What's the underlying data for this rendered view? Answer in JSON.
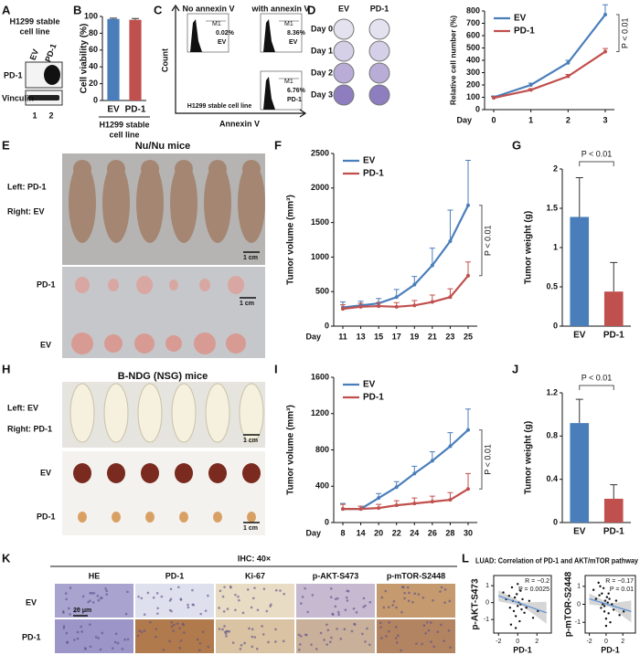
{
  "panel_labels": [
    "A",
    "B",
    "C",
    "D",
    "E",
    "F",
    "G",
    "H",
    "I",
    "J",
    "K",
    "L"
  ],
  "panel_A": {
    "title": [
      "H1299 stable",
      "cell line"
    ],
    "lanes": [
      "EV",
      "PD-1"
    ],
    "rows": [
      "PD-1",
      "Vinculin"
    ],
    "lane_numbers": [
      "1",
      "2"
    ]
  },
  "panel_C": {
    "headers": [
      "No annexin V",
      "with annexin V"
    ],
    "gate": "M1",
    "plots": [
      {
        "percent": "0.02%",
        "label": "EV"
      },
      {
        "percent": "8.36%",
        "label": "EV"
      },
      {
        "percent": "6.76%",
        "label": "PD-1"
      }
    ],
    "y_axis": "Count",
    "x_axis": "Annexin V",
    "caption": "H1299 stable cell line"
  },
  "panel_D": {
    "columns": [
      "EV",
      "PD-1"
    ],
    "rows": [
      "Day 0",
      "Day 1",
      "Day 2",
      "Day 3"
    ]
  },
  "panel_E": {
    "title": "Nu/Nu mice",
    "legend": [
      "Left: PD-1",
      "Right: EV"
    ],
    "scale": "1 cm",
    "rows": [
      "PD-1",
      "EV"
    ]
  },
  "panel_H": {
    "title": "B-NDG (NSG) mice",
    "legend": [
      "Left: EV",
      "Right: PD-1"
    ],
    "scale": "1 cm",
    "rows": [
      "EV",
      "PD-1"
    ]
  },
  "panel_K": {
    "title": "IHC: 40×",
    "columns": [
      "HE",
      "PD-1",
      "Ki-67",
      "p-AKT-S473",
      "p-mTOR-S2448"
    ],
    "rows": [
      "EV",
      "PD-1"
    ],
    "scale": "20 μm"
  },
  "panel_L": {
    "title": "LUAD: Correlation of PD-1 and AKT/mTOR pathway"
  },
  "chart_data": [
    {
      "type": "bar",
      "ylabel": "Cell viability (%)",
      "xlabel": [
        "H1299 stable",
        "cell line"
      ],
      "categories": [
        "EV",
        "PD-1"
      ],
      "values": [
        97,
        96
      ],
      "errors": [
        1,
        1.5
      ],
      "colors": [
        "#4a7ebb",
        "#c0504d"
      ],
      "ylim": [
        0,
        100
      ],
      "yticks": [
        0,
        20,
        40,
        60,
        80,
        100
      ]
    },
    {
      "type": "line",
      "ylabel": "Relative cell number (%)",
      "xlabel": "Day",
      "categories": [
        0,
        1,
        2,
        3
      ],
      "series": [
        {
          "name": "EV",
          "color": "#4a7ebb",
          "values": [
            100,
            200,
            380,
            770
          ],
          "errors": [
            10,
            15,
            20,
            80
          ]
        },
        {
          "name": "PD-1",
          "color": "#c0504d",
          "values": [
            95,
            160,
            270,
            470
          ],
          "errors": [
            10,
            10,
            15,
            25
          ]
        }
      ],
      "ylim": [
        0,
        800
      ],
      "yticks": [
        0,
        100,
        200,
        300,
        400,
        500,
        600,
        700,
        800
      ],
      "annotation": "P < 0.01"
    },
    {
      "type": "line",
      "ylabel": "Tumor volume (mm³)",
      "xlabel": "Day",
      "categories": [
        11,
        13,
        15,
        17,
        19,
        21,
        23,
        25
      ],
      "series": [
        {
          "name": "EV",
          "color": "#4a7ebb",
          "values": [
            270,
            300,
            330,
            420,
            600,
            880,
            1230,
            1750
          ],
          "errors": [
            80,
            60,
            70,
            110,
            120,
            250,
            450,
            650
          ]
        },
        {
          "name": "PD-1",
          "color": "#c0504d",
          "values": [
            250,
            280,
            290,
            280,
            300,
            350,
            420,
            730
          ],
          "errors": [
            60,
            50,
            50,
            60,
            70,
            100,
            120,
            200
          ]
        }
      ],
      "ylim": [
        0,
        2500
      ],
      "yticks": [
        0,
        500,
        1000,
        1500,
        2000,
        2500
      ],
      "annotation": "P < 0.01"
    },
    {
      "type": "bar",
      "ylabel": "Tumor weight (g)",
      "categories": [
        "EV",
        "PD-1"
      ],
      "values": [
        1.39,
        0.44
      ],
      "errors": [
        0.5,
        0.37
      ],
      "colors": [
        "#4a7ebb",
        "#c0504d"
      ],
      "ylim": [
        0,
        2
      ],
      "yticks": [
        0,
        0.5,
        1,
        1.5,
        2
      ],
      "annotation": "P < 0.01"
    },
    {
      "type": "line",
      "ylabel": "Tumor volume (mm³)",
      "xlabel": "Day",
      "categories": [
        8,
        14,
        20,
        22,
        24,
        26,
        28,
        30
      ],
      "series": [
        {
          "name": "EV",
          "color": "#4a7ebb",
          "values": [
            150,
            150,
            270,
            390,
            540,
            680,
            840,
            1020
          ],
          "errors": [
            60,
            30,
            50,
            60,
            80,
            100,
            150,
            230
          ]
        },
        {
          "name": "PD-1",
          "color": "#c0504d",
          "values": [
            150,
            150,
            160,
            190,
            210,
            230,
            250,
            370
          ],
          "errors": [
            50,
            30,
            40,
            50,
            60,
            60,
            80,
            170
          ]
        }
      ],
      "ylim": [
        0,
        1600
      ],
      "yticks": [
        0,
        400,
        800,
        1200,
        1600
      ],
      "annotation": "P < 0.01"
    },
    {
      "type": "bar",
      "ylabel": "Tumor weight (g)",
      "categories": [
        "EV",
        "PD-1"
      ],
      "values": [
        0.92,
        0.22
      ],
      "errors": [
        0.22,
        0.13
      ],
      "colors": [
        "#4a7ebb",
        "#c0504d"
      ],
      "ylim": [
        0,
        1.2
      ],
      "yticks": [
        0,
        0.4,
        0.8,
        1.2
      ],
      "annotation": "P < 0.01"
    },
    {
      "type": "scatter",
      "ylabel": "p-AKT-S473",
      "xlabel": "PD-1",
      "color": "#111111",
      "x": [
        -1.5,
        -1.2,
        -0.9,
        -0.8,
        -0.6,
        -0.5,
        -0.4,
        -0.3,
        -0.2,
        -0.1,
        0,
        0.1,
        0.2,
        0.3,
        0.4,
        0.5,
        0.7,
        0.9,
        1.2,
        1.6,
        2.1,
        -0.7,
        0,
        0.3,
        -0.2
      ],
      "values": [
        0.6,
        0.2,
        0.4,
        -0.3,
        0.9,
        0.1,
        -0.5,
        0.3,
        -0.8,
        0.5,
        -0.2,
        0,
        -1.1,
        0.7,
        -0.4,
        0.2,
        -0.6,
        -0.3,
        0.1,
        -0.9,
        -0.5,
        -1.3,
        1.1,
        -0.1,
        -1.5
      ],
      "trend": {
        "color": "#5b8fd6",
        "x": [
          -2,
          3
        ],
        "y": [
          0.4,
          -0.6
        ]
      },
      "xlim": [
        -2.5,
        3.5
      ],
      "ylim": [
        -1.8,
        1.6
      ],
      "xticks": [
        -2,
        0,
        2
      ],
      "yticks": [
        -1,
        0,
        1
      ],
      "annotation": [
        "R = −0.2",
        "P = 0.0025"
      ]
    },
    {
      "type": "scatter",
      "ylabel": "p-mTOR-S2448",
      "xlabel": "PD-1",
      "color": "#111111",
      "x": [
        -1.5,
        -1.2,
        -0.9,
        -0.8,
        -0.6,
        -0.5,
        -0.4,
        -0.3,
        -0.2,
        -0.1,
        0,
        0.1,
        0.2,
        0.3,
        0.4,
        0.5,
        0.7,
        0.9,
        1.2,
        1.6,
        2.1,
        -0.7,
        0,
        0.3,
        -0.2
      ],
      "values": [
        0.8,
        0.3,
        1.2,
        0.5,
        -0.2,
        0.6,
        0,
        0.9,
        -0.4,
        0.2,
        -0.8,
        0.4,
        0.1,
        -0.5,
        0.3,
        -1,
        0,
        -0.3,
        0.2,
        -0.6,
        -0.4,
        1,
        -1.2,
        0.6,
        -0.1
      ],
      "trend": {
        "color": "#5b8fd6",
        "x": [
          -2,
          3
        ],
        "y": [
          0.3,
          -0.4
        ]
      },
      "xlim": [
        -2.5,
        3.5
      ],
      "ylim": [
        -1.6,
        1.6
      ],
      "xticks": [
        -2,
        0,
        2
      ],
      "yticks": [
        -1,
        0,
        1
      ],
      "annotation": [
        "R = −0.17",
        "P = 0.01"
      ]
    }
  ]
}
